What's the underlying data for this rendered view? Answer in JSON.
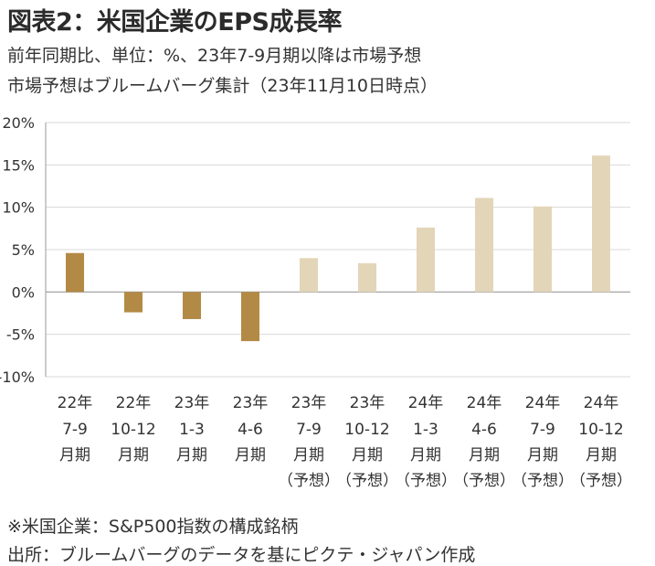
{
  "title": "図表2：米国企業のEPS成長率",
  "subtitle_line1": "前年同期比、単位：%、23年7-9月期以降は市場予想",
  "subtitle_line2": "市場予想はブルームバーグ集計（23年11月10日時点）",
  "footnote_line1": "※米国企業：S&P500指数の構成銘柄",
  "footnote_line2": "出所：ブルームバーグのデータを基にピクテ・ジャパン作成",
  "colors": {
    "actual": "#b38a45",
    "forecast": "#e3d5b8",
    "grid": "#d9d9d9",
    "axis": "#999999"
  },
  "chart_data": {
    "type": "bar",
    "title": "図表2：米国企業のEPS成長率",
    "ylim": [
      -10,
      20
    ],
    "yticks": [
      "-10%",
      "-5%",
      "0%",
      "5%",
      "10%",
      "15%",
      "20%"
    ],
    "grid": true,
    "categories": [
      [
        "22年",
        "7-9",
        "月期",
        ""
      ],
      [
        "22年",
        "10-12",
        "月期",
        ""
      ],
      [
        "23年",
        "1-3",
        "月期",
        ""
      ],
      [
        "23年",
        "4-6",
        "月期",
        ""
      ],
      [
        "23年",
        "7-9",
        "月期",
        "（予想）"
      ],
      [
        "23年",
        "10-12",
        "月期",
        "（予想）"
      ],
      [
        "24年",
        "1-3",
        "月期",
        "（予想）"
      ],
      [
        "24年",
        "4-6",
        "月期",
        "（予想）"
      ],
      [
        "24年",
        "7-9",
        "月期",
        "（予想）"
      ],
      [
        "24年",
        "10-12",
        "月期",
        "（予想）"
      ]
    ],
    "values": [
      4.6,
      -2.4,
      -3.2,
      -5.8,
      4.0,
      3.4,
      7.6,
      11.1,
      10.1,
      16.1
    ],
    "forecast": [
      false,
      false,
      false,
      false,
      true,
      true,
      true,
      true,
      true,
      true
    ]
  }
}
